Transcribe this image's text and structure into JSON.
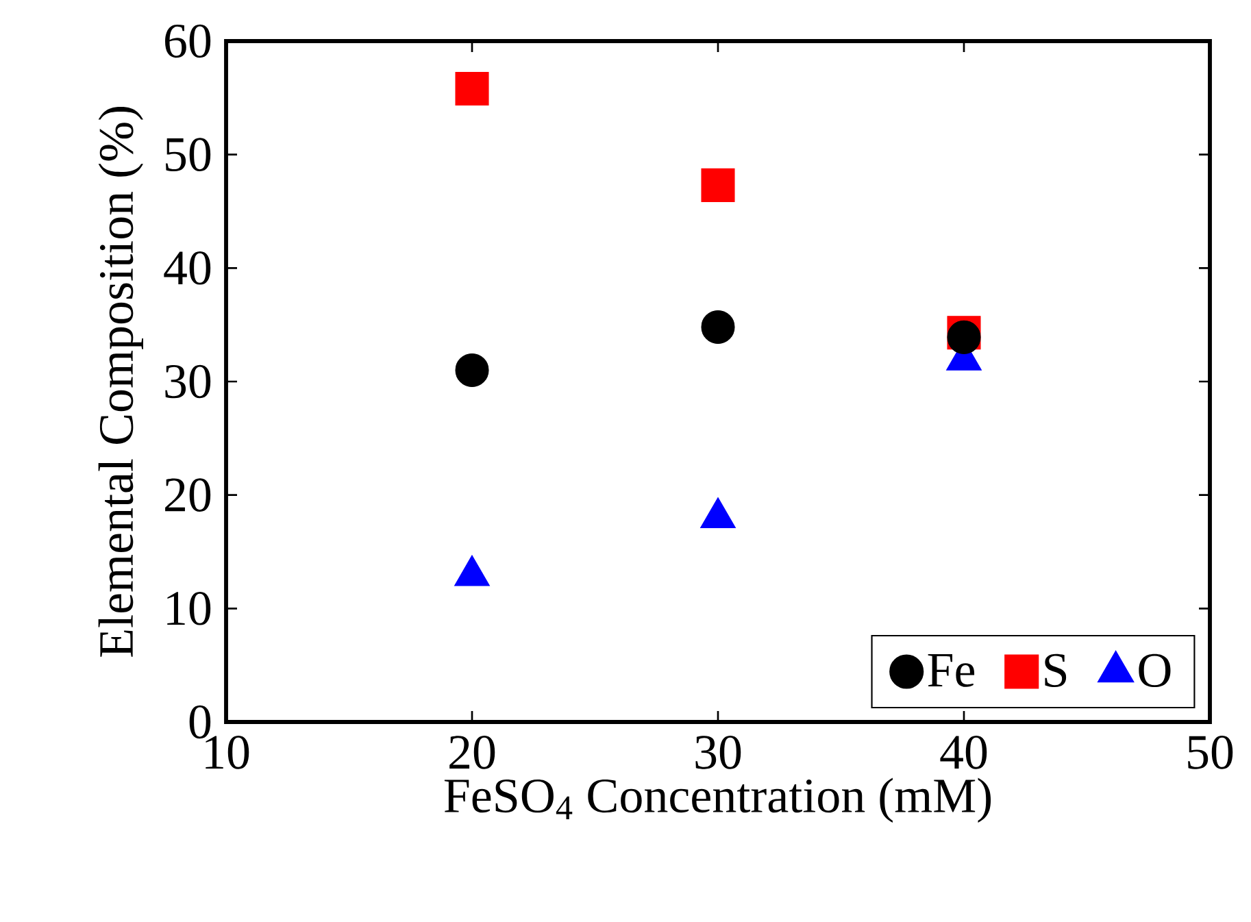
{
  "chart_data": {
    "type": "scatter",
    "xlabel": "FeSO$_{4}$ Concentration (mM)",
    "ylabel": "Elemental Composition (%)",
    "xlim": [
      10,
      50
    ],
    "xticks": [
      10,
      20,
      30,
      40,
      50
    ],
    "ylim": [
      0,
      60
    ],
    "yticks": [
      0,
      10,
      20,
      30,
      40,
      50,
      60
    ],
    "grid": false,
    "legend": "bottom right",
    "series": [
      {
        "name": "Fe",
        "color": "#000000",
        "marker": "circle",
        "x": [
          20,
          30,
          40
        ],
        "values": [
          31.0,
          34.8,
          33.9
        ]
      },
      {
        "name": "S",
        "color": "#ff0000",
        "marker": "square",
        "x": [
          20,
          30,
          40
        ],
        "values": [
          55.8,
          47.3,
          34.3
        ]
      },
      {
        "name": "O",
        "color": "#0000ff",
        "marker": "triangle",
        "x": [
          20,
          30,
          40
        ],
        "values": [
          12.9,
          18.0,
          31.9
        ]
      }
    ]
  }
}
